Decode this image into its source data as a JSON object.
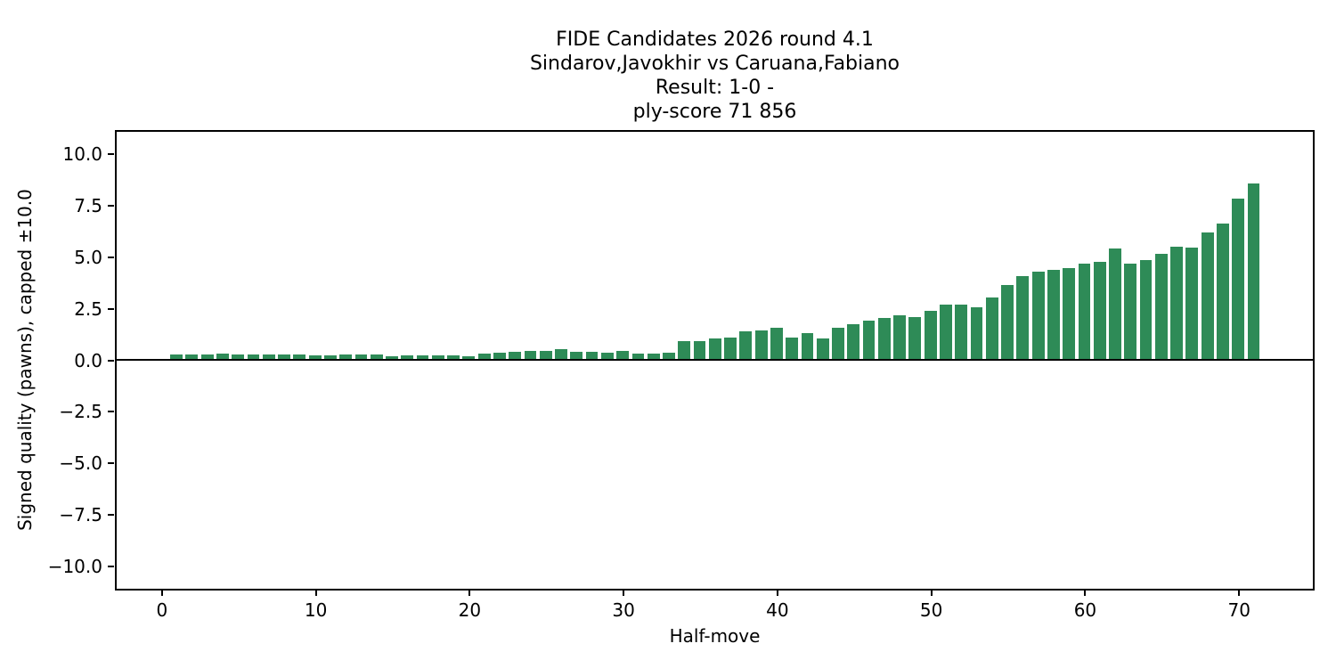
{
  "title": {
    "line1": "FIDE Candidates 2026  round 4.1",
    "line2": "Sindarov,Javokhir vs Caruana,Fabiano",
    "line3": "Result: 1-0 -",
    "line4": "ply-score 71 856"
  },
  "chart_data": {
    "type": "bar",
    "title": "FIDE Candidates 2026  round 4.1\nSindarov,Javokhir vs Caruana,Fabiano\nResult: 1-0 -\nply-score 71 856",
    "xlabel": "Half-move",
    "ylabel": "Signed quality (pawns), capped ±10.0",
    "bar_color": "#2e8b57",
    "bar_width": 0.8,
    "grid": false,
    "legend": "none",
    "xlim": [
      -3,
      74.85
    ],
    "ylim": [
      -11.13,
      11.13
    ],
    "zero_line": true,
    "x_ticks": [
      {
        "v": 0,
        "label": "0"
      },
      {
        "v": 10,
        "label": "10"
      },
      {
        "v": 20,
        "label": "20"
      },
      {
        "v": 30,
        "label": "30"
      },
      {
        "v": 40,
        "label": "40"
      },
      {
        "v": 50,
        "label": "50"
      },
      {
        "v": 60,
        "label": "60"
      },
      {
        "v": 70,
        "label": "70"
      }
    ],
    "y_ticks": [
      {
        "v": 10.0,
        "label": "10.0"
      },
      {
        "v": 7.5,
        "label": "7.5"
      },
      {
        "v": 5.0,
        "label": "5.0"
      },
      {
        "v": 2.5,
        "label": "2.5"
      },
      {
        "v": 0.0,
        "label": "0.0"
      },
      {
        "v": -2.5,
        "label": "−2.5"
      },
      {
        "v": -5.0,
        "label": "−5.0"
      },
      {
        "v": -7.5,
        "label": "−7.5"
      },
      {
        "v": -10.0,
        "label": "−10.0"
      }
    ],
    "x": [
      1,
      2,
      3,
      4,
      5,
      6,
      7,
      8,
      9,
      10,
      11,
      12,
      13,
      14,
      15,
      16,
      17,
      18,
      19,
      20,
      21,
      22,
      23,
      24,
      25,
      26,
      27,
      28,
      29,
      30,
      31,
      32,
      33,
      34,
      35,
      36,
      37,
      38,
      39,
      40,
      41,
      42,
      43,
      44,
      45,
      46,
      47,
      48,
      49,
      50,
      51,
      52,
      53,
      54,
      55,
      56,
      57,
      58,
      59,
      60,
      61,
      62,
      63,
      64,
      65,
      66,
      67,
      68,
      69,
      70,
      71
    ],
    "values": [
      0.25,
      0.25,
      0.25,
      0.3,
      0.22,
      0.22,
      0.25,
      0.23,
      0.23,
      0.18,
      0.18,
      0.25,
      0.22,
      0.22,
      0.14,
      0.19,
      0.19,
      0.18,
      0.2,
      0.15,
      0.27,
      0.32,
      0.38,
      0.43,
      0.43,
      0.5,
      0.36,
      0.36,
      0.33,
      0.39,
      0.26,
      0.26,
      0.32,
      0.87,
      0.87,
      1.02,
      1.08,
      1.38,
      1.4,
      1.52,
      1.07,
      1.28,
      1.02,
      1.52,
      1.72,
      1.86,
      2.0,
      2.16,
      2.05,
      2.37,
      2.67,
      2.67,
      2.55,
      3.0,
      3.61,
      4.04,
      4.24,
      4.33,
      4.43,
      4.63,
      4.72,
      5.4,
      4.65,
      4.82,
      5.11,
      5.47,
      5.43,
      6.18,
      6.57,
      7.82,
      8.55
    ]
  }
}
